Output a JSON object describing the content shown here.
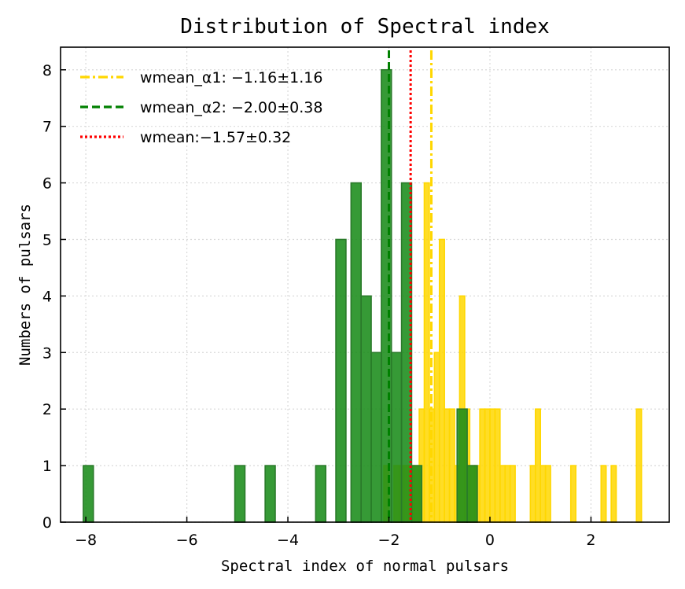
{
  "chart_data": {
    "type": "bar",
    "title": "Distribution of Spectral index",
    "xlabel": "Spectral index of normal pulsars",
    "ylabel": "Numbers of pulsars",
    "xlim": [
      -8.5,
      3.55
    ],
    "ylim": [
      0,
      8.4
    ],
    "xticks": [
      -8,
      -6,
      -4,
      -2,
      0,
      2
    ],
    "xtick_labels": [
      "−8",
      "−6",
      "−4",
      "−2",
      "0",
      "2"
    ],
    "yticks": [
      0,
      1,
      2,
      3,
      4,
      5,
      6,
      7,
      8
    ],
    "ytick_labels": [
      "0",
      "1",
      "2",
      "3",
      "4",
      "5",
      "6",
      "7",
      "8"
    ],
    "grid": true,
    "legend_position": "top-left",
    "series": [
      {
        "name": "α1",
        "color": "#FFD700",
        "bin_width": 0.1,
        "bars": [
          [
            -2.05,
            1
          ],
          [
            -1.85,
            1
          ],
          [
            -1.75,
            1
          ],
          [
            -1.65,
            1
          ],
          [
            -1.55,
            1
          ],
          [
            -1.45,
            1
          ],
          [
            -1.35,
            2
          ],
          [
            -1.25,
            6
          ],
          [
            -1.15,
            2
          ],
          [
            -1.05,
            3
          ],
          [
            -0.95,
            5
          ],
          [
            -0.85,
            2
          ],
          [
            -0.75,
            2
          ],
          [
            -0.65,
            1
          ],
          [
            -0.55,
            4
          ],
          [
            -0.45,
            2
          ],
          [
            -0.35,
            1
          ],
          [
            -0.25,
            1
          ],
          [
            -0.15,
            2
          ],
          [
            -0.05,
            2
          ],
          [
            0.05,
            2
          ],
          [
            0.15,
            2
          ],
          [
            0.25,
            1
          ],
          [
            0.35,
            1
          ],
          [
            0.45,
            1
          ],
          [
            0.85,
            1
          ],
          [
            0.95,
            2
          ],
          [
            1.05,
            1
          ],
          [
            1.15,
            1
          ],
          [
            1.65,
            1
          ],
          [
            2.25,
            1
          ],
          [
            2.45,
            1
          ],
          [
            2.95,
            2
          ]
        ]
      },
      {
        "name": "α2",
        "color": "#1a8c1a",
        "bin_width": 0.2,
        "bars": [
          [
            -7.95,
            1
          ],
          [
            -4.95,
            1
          ],
          [
            -4.35,
            1
          ],
          [
            -3.35,
            1
          ],
          [
            -2.95,
            5
          ],
          [
            -2.65,
            6
          ],
          [
            -2.45,
            4
          ],
          [
            -2.25,
            3
          ],
          [
            -2.05,
            8
          ],
          [
            -1.85,
            3
          ],
          [
            -1.65,
            6
          ],
          [
            -1.45,
            1
          ],
          [
            -0.55,
            2
          ],
          [
            -0.35,
            1
          ]
        ]
      }
    ],
    "vlines": [
      {
        "label": "wmean_α1: −1.16±1.16",
        "x": -1.16,
        "color": "#FFD700",
        "style": "dashdot"
      },
      {
        "label": "wmean_α2: −2.00±0.38",
        "x": -2.0,
        "color": "#008000",
        "style": "dashed"
      },
      {
        "label": "wmean:−1.57±0.32",
        "x": -1.57,
        "color": "#ff0000",
        "style": "dotted"
      }
    ]
  }
}
